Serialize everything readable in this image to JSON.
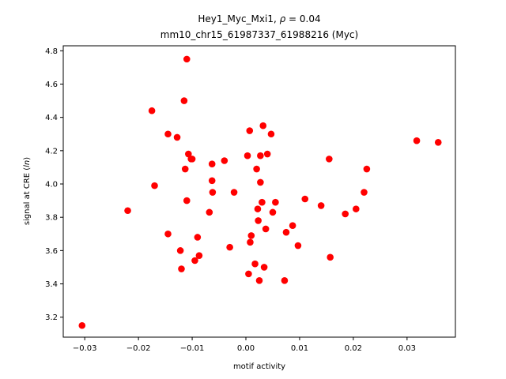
{
  "chart_data": {
    "type": "scatter",
    "title_line1": "Hey1_Myc_Mxi1, ρ = 0.04",
    "title_line2": "mm10_chr15_61987337_61988216 (Myc)",
    "xlabel": "motif activity",
    "ylabel": "signal at CRE (ln)",
    "xlim": [
      -0.034,
      0.039
    ],
    "ylim": [
      3.08,
      4.83
    ],
    "xticks": [
      -0.03,
      -0.02,
      -0.01,
      0.0,
      0.01,
      0.02,
      0.03
    ],
    "xtick_labels": [
      "−0.03",
      "−0.02",
      "−0.01",
      "0.00",
      "0.01",
      "0.02",
      "0.03"
    ],
    "yticks": [
      3.2,
      3.4,
      3.6,
      3.8,
      4.0,
      4.2,
      4.4,
      4.6,
      4.8
    ],
    "ytick_labels": [
      "3.2",
      "3.4",
      "3.6",
      "3.8",
      "4.0",
      "4.2",
      "4.4",
      "4.6",
      "4.8"
    ],
    "grid": false,
    "marker_color": "#ff0000",
    "points": [
      {
        "x": -0.0305,
        "y": 3.15
      },
      {
        "x": -0.022,
        "y": 3.84
      },
      {
        "x": -0.0175,
        "y": 4.44
      },
      {
        "x": -0.017,
        "y": 3.99
      },
      {
        "x": -0.0145,
        "y": 4.3
      },
      {
        "x": -0.0145,
        "y": 3.7
      },
      {
        "x": -0.0128,
        "y": 4.28
      },
      {
        "x": -0.0122,
        "y": 3.6
      },
      {
        "x": -0.012,
        "y": 3.49
      },
      {
        "x": -0.0115,
        "y": 4.5
      },
      {
        "x": -0.0113,
        "y": 4.09
      },
      {
        "x": -0.011,
        "y": 4.75
      },
      {
        "x": -0.011,
        "y": 3.9
      },
      {
        "x": -0.0107,
        "y": 4.18
      },
      {
        "x": -0.0102,
        "y": 4.15
      },
      {
        "x": -0.01,
        "y": 4.15
      },
      {
        "x": -0.0095,
        "y": 3.54
      },
      {
        "x": -0.009,
        "y": 3.68
      },
      {
        "x": -0.0087,
        "y": 3.57
      },
      {
        "x": -0.0068,
        "y": 3.83
      },
      {
        "x": -0.0063,
        "y": 4.12
      },
      {
        "x": -0.0063,
        "y": 4.02
      },
      {
        "x": -0.0062,
        "y": 3.95
      },
      {
        "x": -0.004,
        "y": 4.14
      },
      {
        "x": -0.003,
        "y": 3.62
      },
      {
        "x": -0.0022,
        "y": 3.95
      },
      {
        "x": 0.0003,
        "y": 4.17
      },
      {
        "x": 0.0005,
        "y": 3.46
      },
      {
        "x": 0.0007,
        "y": 4.32
      },
      {
        "x": 0.0008,
        "y": 3.65
      },
      {
        "x": 0.001,
        "y": 3.69
      },
      {
        "x": 0.0017,
        "y": 3.52
      },
      {
        "x": 0.002,
        "y": 4.09
      },
      {
        "x": 0.0022,
        "y": 3.85
      },
      {
        "x": 0.0023,
        "y": 3.78
      },
      {
        "x": 0.0025,
        "y": 3.42
      },
      {
        "x": 0.0027,
        "y": 4.01
      },
      {
        "x": 0.0027,
        "y": 4.17
      },
      {
        "x": 0.003,
        "y": 3.89
      },
      {
        "x": 0.0032,
        "y": 4.35
      },
      {
        "x": 0.0034,
        "y": 3.5
      },
      {
        "x": 0.0037,
        "y": 3.73
      },
      {
        "x": 0.004,
        "y": 4.18
      },
      {
        "x": 0.0047,
        "y": 4.3
      },
      {
        "x": 0.005,
        "y": 3.83
      },
      {
        "x": 0.0055,
        "y": 3.89
      },
      {
        "x": 0.0072,
        "y": 3.42
      },
      {
        "x": 0.0075,
        "y": 3.71
      },
      {
        "x": 0.0087,
        "y": 3.75
      },
      {
        "x": 0.0097,
        "y": 3.63
      },
      {
        "x": 0.011,
        "y": 3.91
      },
      {
        "x": 0.014,
        "y": 3.87
      },
      {
        "x": 0.0155,
        "y": 4.15
      },
      {
        "x": 0.0157,
        "y": 3.56
      },
      {
        "x": 0.0185,
        "y": 3.82
      },
      {
        "x": 0.0205,
        "y": 3.85
      },
      {
        "x": 0.022,
        "y": 3.95
      },
      {
        "x": 0.0225,
        "y": 4.09
      },
      {
        "x": 0.0318,
        "y": 4.26
      },
      {
        "x": 0.0358,
        "y": 4.25
      }
    ]
  }
}
